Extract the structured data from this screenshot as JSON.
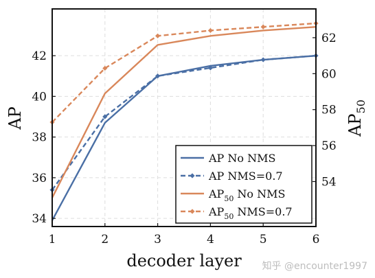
{
  "chart_data": {
    "type": "line",
    "x": [
      1,
      2,
      3,
      4,
      5,
      6
    ],
    "xlabel": "decoder layer",
    "ylabel_left": "AP",
    "ylabel_right": "AP",
    "ylabel_right_subscript": "50",
    "xlim": [
      1,
      6
    ],
    "ylim_left": [
      33.6,
      44.3
    ],
    "ylim_right": [
      51.5,
      63.6
    ],
    "xticks": [
      "1",
      "2",
      "3",
      "4",
      "5",
      "6"
    ],
    "yticks_left": [
      34,
      36,
      38,
      40,
      42
    ],
    "yticks_right": [
      54,
      56,
      58,
      60,
      62
    ],
    "grid": true,
    "legend_position": "bottom-right",
    "series": [
      {
        "name": "AP No NMS",
        "axis": "left",
        "style": "solid",
        "marker": "none",
        "color": "#4a6fa5",
        "values": [
          33.9,
          38.7,
          41.0,
          41.5,
          41.8,
          42.0
        ]
      },
      {
        "name": "AP NMS=0.7",
        "axis": "left",
        "style": "dashed",
        "marker": "diamond",
        "color": "#4a6fa5",
        "values": [
          35.4,
          39.0,
          41.0,
          41.4,
          41.8,
          42.0
        ]
      },
      {
        "name": "AP",
        "name_sub": "50",
        "name_suffix": " No NMS",
        "axis": "right",
        "style": "solid",
        "marker": "none",
        "color": "#d9875a",
        "values": [
          53.1,
          58.9,
          61.6,
          62.1,
          62.4,
          62.6
        ]
      },
      {
        "name": "AP",
        "name_sub": "50",
        "name_suffix": " NMS=0.7",
        "axis": "right",
        "style": "dashed",
        "marker": "diamond",
        "color": "#d9875a",
        "values": [
          57.3,
          60.3,
          62.1,
          62.4,
          62.6,
          62.8
        ]
      }
    ]
  },
  "watermark": "知乎 @encounter1997"
}
